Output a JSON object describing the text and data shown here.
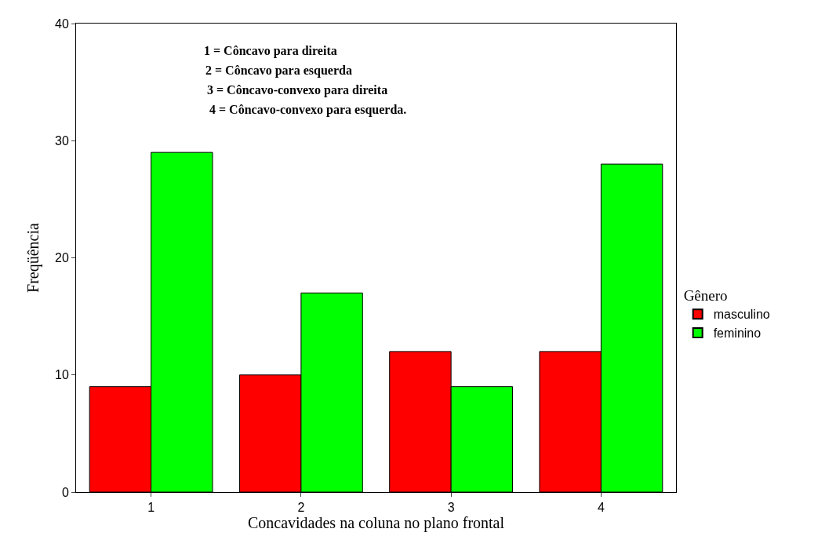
{
  "chart_data": {
    "type": "bar",
    "xlabel": "Concavidades na coluna no plano frontal",
    "ylabel": "Freqüência",
    "legend_title": "Gênero",
    "categories": [
      "1",
      "2",
      "3",
      "4"
    ],
    "series": [
      {
        "name": "masculino",
        "color": "#ff0000",
        "values": [
          9,
          10,
          12,
          12
        ]
      },
      {
        "name": "feminino",
        "color": "#00ff00",
        "values": [
          29,
          17,
          9,
          28
        ]
      }
    ],
    "ylim": [
      0,
      40
    ],
    "yticks": [
      0,
      10,
      20,
      30,
      40
    ],
    "annotations": [
      "1 = Côncavo para direita",
      "2 = Côncavo para esquerda",
      "3 = Côncavo-convexo para direita",
      "4 = Côncavo-convexo para esquerda."
    ],
    "grid": false,
    "legend": "right"
  }
}
